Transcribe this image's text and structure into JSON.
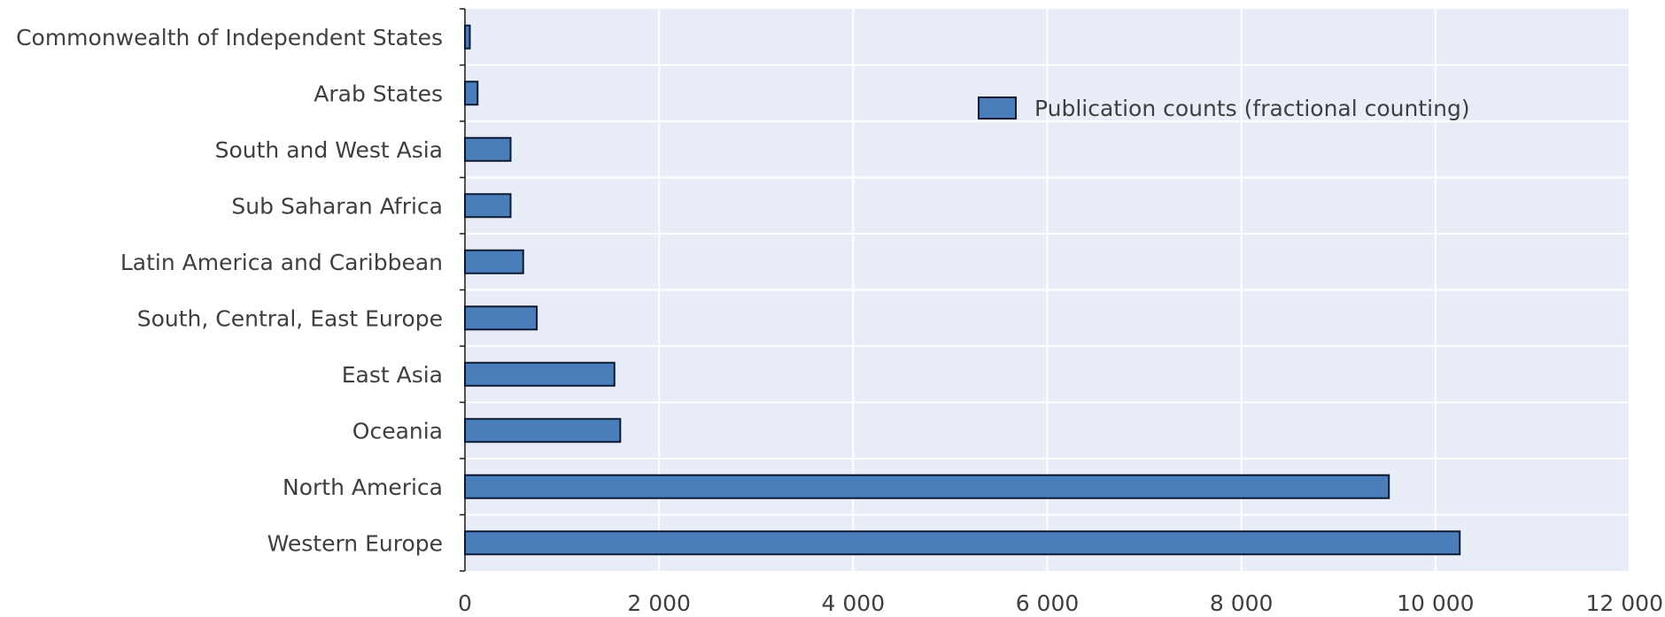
{
  "chart_data": {
    "type": "bar",
    "orientation": "horizontal",
    "categories": [
      "Commonwealth of Independent States",
      "Arab States",
      "South and West Asia",
      "Sub Saharan Africa",
      "Latin America and Caribbean",
      "South, Central, East Europe",
      "East Asia",
      "Oceania",
      "North America",
      "Western Europe"
    ],
    "series": [
      {
        "name": "Publication counts (fractional counting)",
        "values": [
          50,
          130,
          470,
          470,
          600,
          740,
          1540,
          1600,
          9520,
          10250
        ],
        "color": "#4a7ebb"
      }
    ],
    "xlim": [
      0,
      12000
    ],
    "x_ticks": [
      0,
      2000,
      4000,
      6000,
      8000,
      10000,
      12000
    ],
    "x_tick_labels": [
      "0",
      "2 000",
      "4 000",
      "6 000",
      "8 000",
      "10 000",
      "12 000"
    ],
    "grid": true,
    "legend_position": "top-right",
    "colors": {
      "plot_background": "#e9edf7",
      "grid": "#ffffff",
      "bar_fill": "#4a7ebb",
      "bar_stroke": "#0d1a33"
    }
  }
}
